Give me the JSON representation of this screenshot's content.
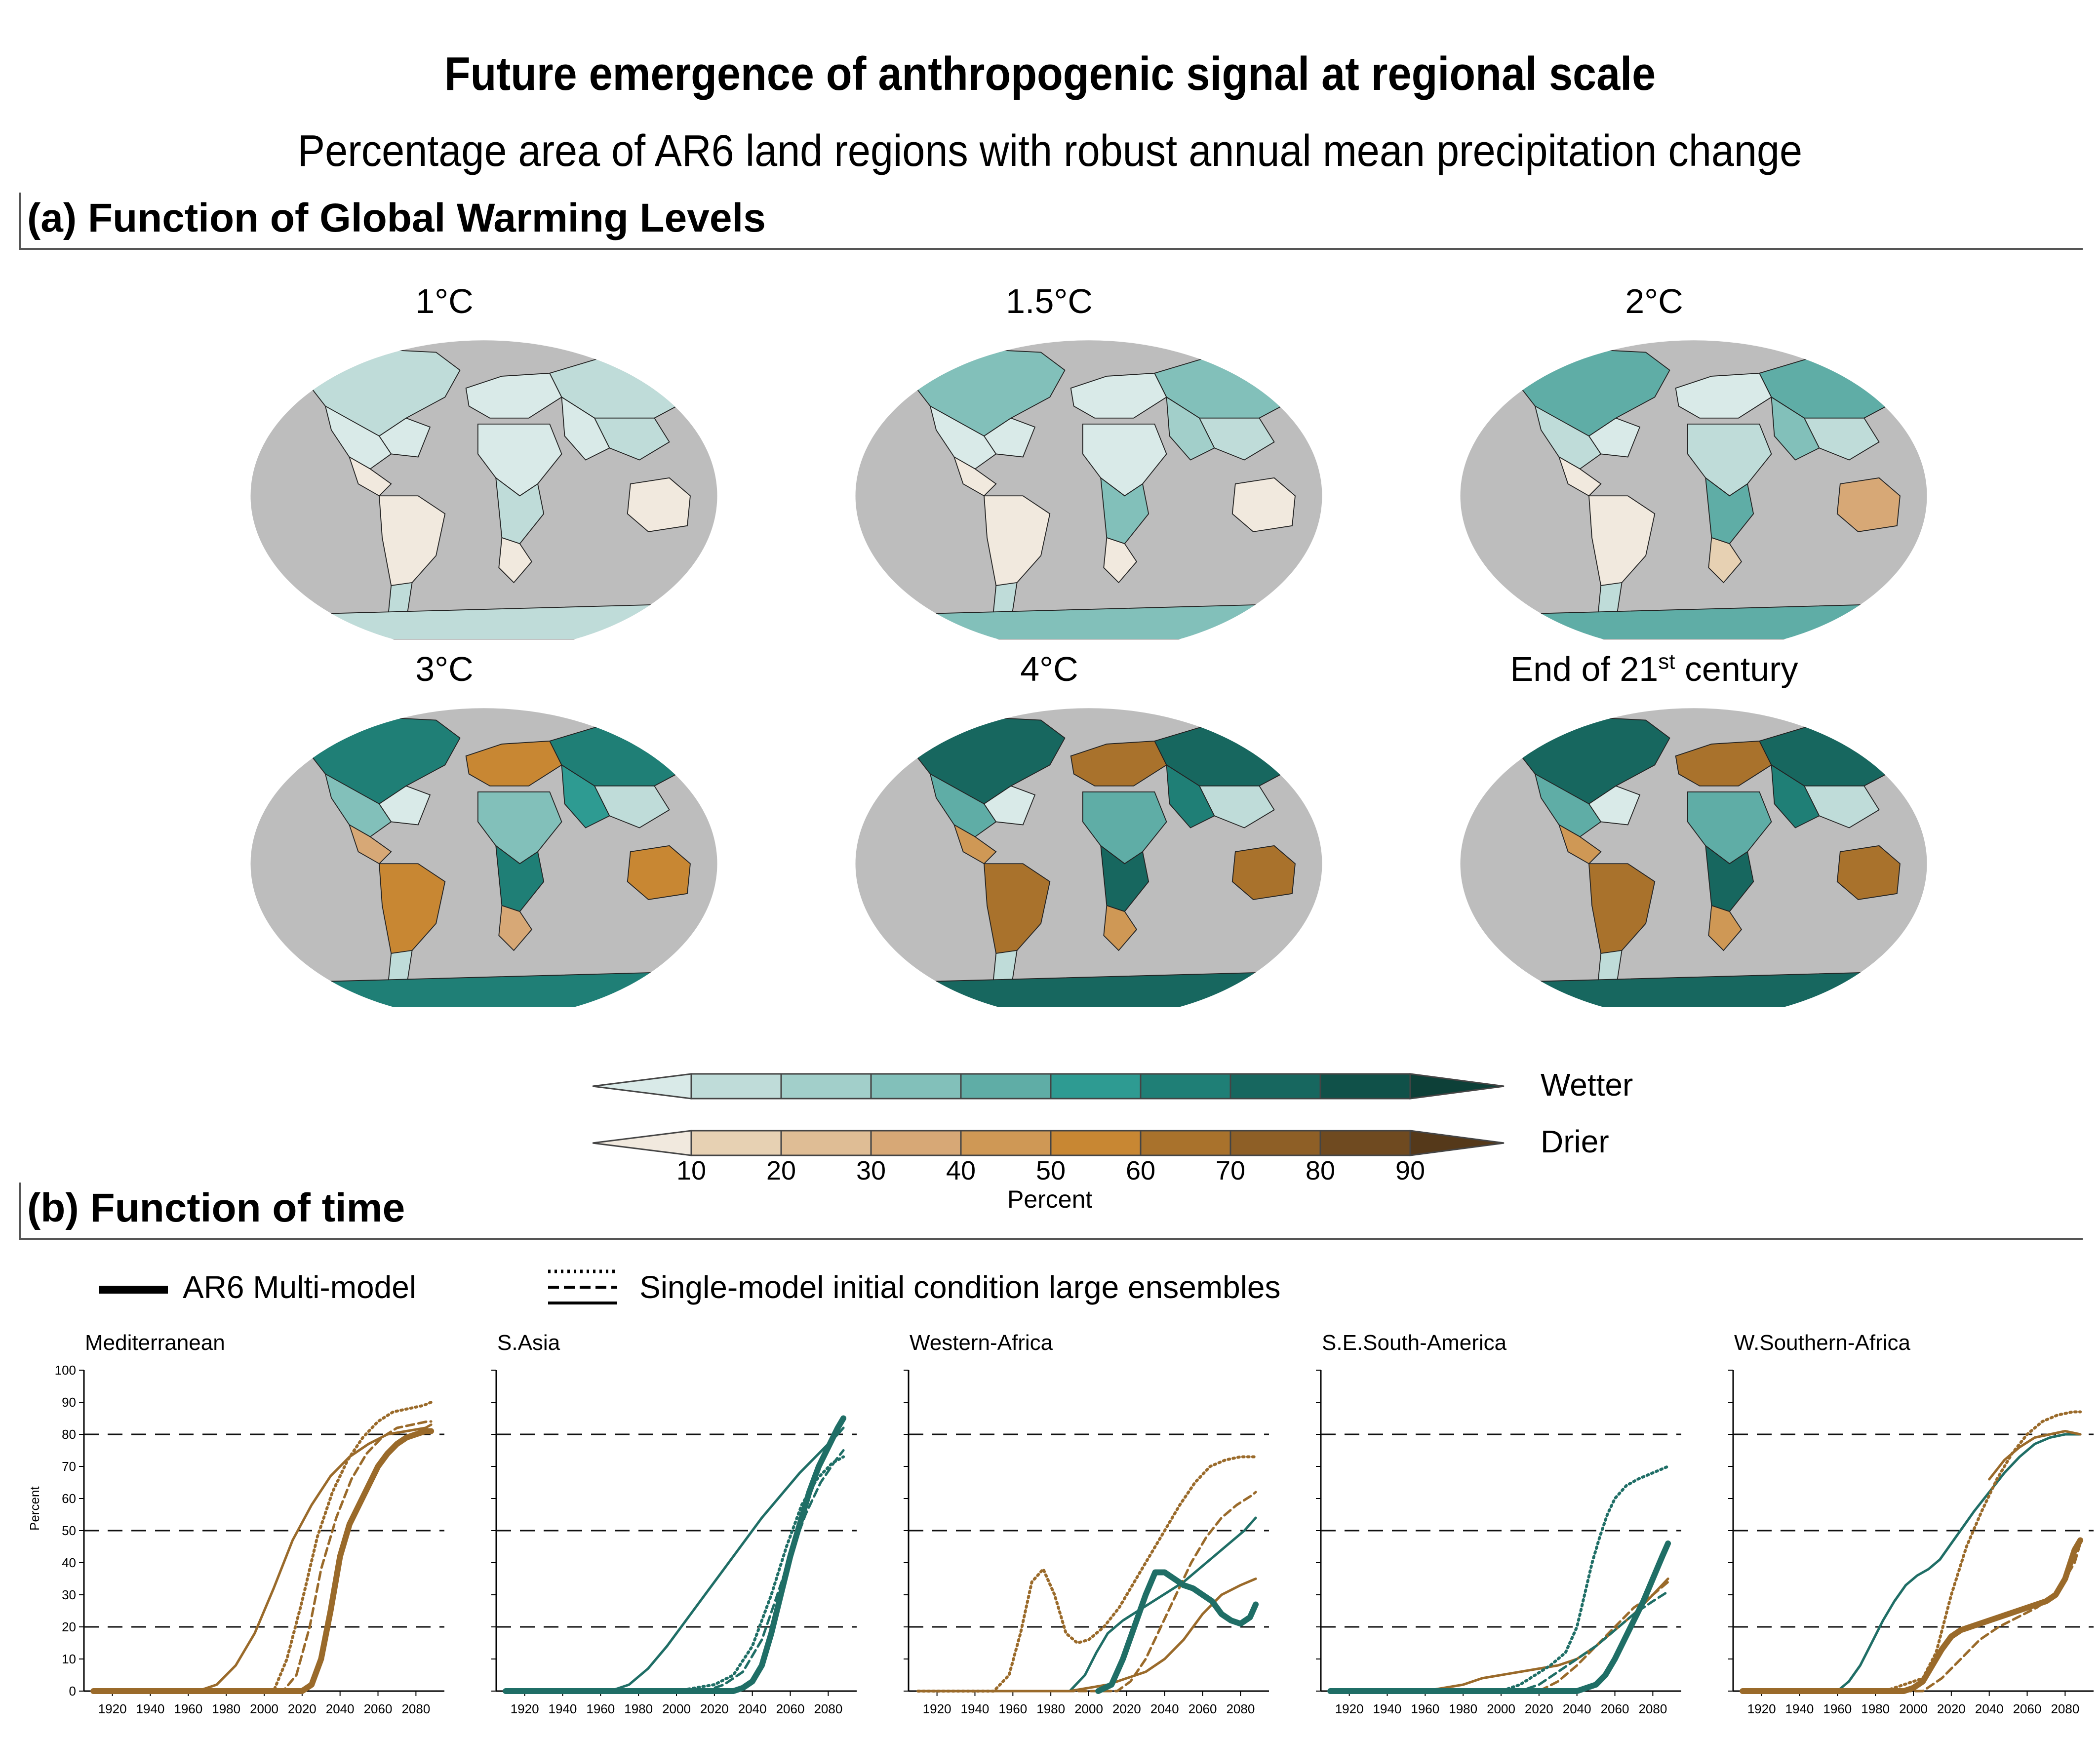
{
  "title": "Future emergence of anthropogenic signal at regional scale",
  "subtitle": "Percentage area of AR6 land regions with robust annual mean precipitation change",
  "section_a": "(a) Function of Global Warming Levels",
  "section_b": "(b) Function of time",
  "maps": [
    {
      "label": "1°C",
      "wet_shade": 1,
      "dry_shade": 1
    },
    {
      "label": "1.5°C",
      "wet_shade": 3,
      "dry_shade": 1
    },
    {
      "label": "2°C",
      "wet_shade": 4,
      "dry_shade": 2
    },
    {
      "label": "3°C",
      "wet_shade": 6,
      "dry_shade": 4
    },
    {
      "label": "4°C",
      "wet_shade": 7,
      "dry_shade": 5
    },
    {
      "label": "End of 21",
      "sup": "st",
      "label_end": " century",
      "wet_shade": 7,
      "dry_shade": 5
    }
  ],
  "colorbar": {
    "wet_label": "Wetter",
    "dry_label": "Drier",
    "unit_label": "Percent",
    "ticks": [
      "10",
      "20",
      "30",
      "40",
      "50",
      "60",
      "70",
      "80",
      "90"
    ],
    "wet_colors": [
      "#d9eae8",
      "#bfdcd9",
      "#a2cfca",
      "#82c0ba",
      "#5fada6",
      "#2e9b92",
      "#1f7f76",
      "#17675f",
      "#105149",
      "#0d4038"
    ],
    "dry_colors": [
      "#f1e9de",
      "#e7d1b3",
      "#dfbd95",
      "#d7a876",
      "#cf9855",
      "#c88733",
      "#a9722c",
      "#8e5f26",
      "#6f4a20",
      "#55391a"
    ]
  },
  "legend": {
    "solid_label": "AR6 Multi-model",
    "dashed_label": "Single-model initial condition large ensembles"
  },
  "y_axis_label": "Percent",
  "chart_data": [
    {
      "type": "line",
      "title": "Mediterranean",
      "color": "#9a6a2a",
      "xlim": [
        1905,
        2095
      ],
      "ylim": [
        0,
        100
      ],
      "x_ticks": [
        1920,
        1940,
        1960,
        1980,
        2000,
        2020,
        2040,
        2060,
        2080
      ],
      "y_ticks": [
        0,
        10,
        20,
        30,
        40,
        50,
        60,
        70,
        80,
        90,
        100
      ],
      "reference_lines": [
        20,
        50,
        80
      ],
      "series": [
        {
          "style": "solid-thick",
          "x": [
            1910,
            2020,
            2025,
            2030,
            2035,
            2040,
            2045,
            2050,
            2055,
            2060,
            2065,
            2070,
            2075,
            2080,
            2085,
            2088
          ],
          "y": [
            0,
            0,
            2,
            10,
            25,
            42,
            52,
            58,
            64,
            70,
            74,
            77,
            79,
            80,
            81,
            81
          ]
        },
        {
          "style": "solid",
          "x": [
            1910,
            1965,
            1975,
            1985,
            1995,
            2005,
            2015,
            2025,
            2035,
            2045,
            2055,
            2065,
            2075,
            2085,
            2088
          ],
          "y": [
            0,
            0,
            2,
            8,
            18,
            32,
            47,
            58,
            67,
            73,
            77,
            80,
            81,
            82,
            83
          ]
        },
        {
          "style": "dotted",
          "x": [
            1910,
            2005,
            2012,
            2020,
            2028,
            2036,
            2044,
            2052,
            2060,
            2068,
            2076,
            2084,
            2088
          ],
          "y": [
            0,
            0,
            10,
            28,
            48,
            62,
            72,
            79,
            84,
            87,
            88,
            89,
            90
          ]
        },
        {
          "style": "dashed",
          "x": [
            1910,
            2010,
            2017,
            2024,
            2030,
            2038,
            2046,
            2054,
            2062,
            2070,
            2078,
            2086,
            2088
          ],
          "y": [
            0,
            0,
            5,
            20,
            38,
            54,
            66,
            74,
            79,
            82,
            83,
            84,
            84
          ]
        }
      ]
    },
    {
      "type": "line",
      "title": "S.Asia",
      "color": "#1f6e66",
      "xlim": [
        1905,
        2095
      ],
      "ylim": [
        0,
        100
      ],
      "x_ticks": [
        1920,
        1940,
        1960,
        1980,
        2000,
        2020,
        2040,
        2060,
        2080
      ],
      "y_ticks": [
        0,
        10,
        20,
        30,
        40,
        50,
        60,
        70,
        80,
        90,
        100
      ],
      "reference_lines": [
        20,
        50,
        80
      ],
      "series": [
        {
          "style": "solid-thick",
          "x": [
            1910,
            2030,
            2035,
            2040,
            2045,
            2050,
            2055,
            2060,
            2065,
            2070,
            2075,
            2080,
            2085,
            2088
          ],
          "y": [
            0,
            0,
            1,
            3,
            8,
            18,
            30,
            42,
            52,
            62,
            70,
            76,
            82,
            85
          ]
        },
        {
          "style": "solid",
          "x": [
            1910,
            1965,
            1975,
            1985,
            1995,
            2005,
            2015,
            2025,
            2035,
            2045,
            2055,
            2065,
            2075,
            2085,
            2088
          ],
          "y": [
            0,
            0,
            2,
            7,
            14,
            22,
            30,
            38,
            46,
            54,
            61,
            68,
            74,
            80,
            82
          ]
        },
        {
          "style": "dotted",
          "x": [
            1910,
            2000,
            2010,
            2020,
            2030,
            2040,
            2050,
            2058,
            2066,
            2074,
            2082,
            2088
          ],
          "y": [
            0,
            0,
            1,
            2,
            5,
            14,
            30,
            45,
            58,
            66,
            71,
            73
          ]
        },
        {
          "style": "dashed",
          "x": [
            1910,
            2015,
            2025,
            2035,
            2045,
            2052,
            2060,
            2068,
            2076,
            2084,
            2088
          ],
          "y": [
            0,
            0,
            2,
            6,
            16,
            28,
            42,
            55,
            65,
            72,
            75
          ]
        }
      ]
    },
    {
      "type": "line",
      "title": "Western-Africa",
      "xlim": [
        1905,
        2095
      ],
      "ylim": [
        0,
        100
      ],
      "x_ticks": [
        1920,
        1940,
        1960,
        1980,
        2000,
        2020,
        2040,
        2060,
        2080
      ],
      "y_ticks": [
        0,
        10,
        20,
        30,
        40,
        50,
        60,
        70,
        80,
        90,
        100
      ],
      "reference_lines": [
        20,
        50,
        80
      ],
      "series": [
        {
          "style": "solid-thick",
          "color": "#1f6e66",
          "x": [
            2005,
            2012,
            2018,
            2024,
            2030,
            2035,
            2040,
            2045,
            2050,
            2055,
            2060,
            2065,
            2070,
            2075,
            2080,
            2085,
            2088
          ],
          "y": [
            0,
            2,
            10,
            20,
            30,
            37,
            37,
            35,
            33,
            32,
            30,
            28,
            24,
            22,
            21,
            23,
            27
          ]
        },
        {
          "style": "solid",
          "color": "#1f6e66",
          "x": [
            1990,
            1998,
            2004,
            2010,
            2018,
            2026,
            2034,
            2042,
            2050,
            2058,
            2066,
            2074,
            2082,
            2088
          ],
          "y": [
            0,
            5,
            12,
            18,
            22,
            25,
            28,
            31,
            34,
            38,
            42,
            46,
            50,
            54
          ]
        },
        {
          "style": "solid",
          "color": "#9a6a2a",
          "x": [
            1910,
            1990,
            2000,
            2010,
            2020,
            2030,
            2040,
            2050,
            2060,
            2070,
            2080,
            2088
          ],
          "y": [
            0,
            0,
            1,
            2,
            4,
            6,
            10,
            16,
            24,
            30,
            33,
            35
          ]
        },
        {
          "style": "dotted",
          "color": "#9a6a2a",
          "x": [
            1910,
            1950,
            1958,
            1964,
            1970,
            1976,
            1982,
            1988,
            1994,
            2000,
            2008,
            2016,
            2024,
            2032,
            2040,
            2048,
            2056,
            2064,
            2072,
            2080,
            2088
          ],
          "y": [
            0,
            0,
            5,
            18,
            34,
            38,
            30,
            18,
            15,
            16,
            20,
            26,
            34,
            42,
            50,
            58,
            65,
            70,
            72,
            73,
            73
          ]
        },
        {
          "style": "dashed",
          "color": "#9a6a2a",
          "x": [
            1910,
            2015,
            2022,
            2030,
            2038,
            2046,
            2054,
            2062,
            2070,
            2078,
            2086,
            2088
          ],
          "y": [
            0,
            0,
            3,
            10,
            20,
            30,
            40,
            48,
            54,
            58,
            61,
            62
          ]
        }
      ]
    },
    {
      "type": "line",
      "title": "S.E.South-America",
      "xlim": [
        1905,
        2095
      ],
      "ylim": [
        0,
        100
      ],
      "x_ticks": [
        1920,
        1940,
        1960,
        1980,
        2000,
        2020,
        2040,
        2060,
        2080
      ],
      "y_ticks": [
        0,
        10,
        20,
        30,
        40,
        50,
        60,
        70,
        80,
        90,
        100
      ],
      "reference_lines": [
        20,
        50,
        80
      ],
      "series": [
        {
          "style": "solid-thick",
          "color": "#1f6e66",
          "x": [
            1910,
            2040,
            2045,
            2050,
            2055,
            2060,
            2065,
            2070,
            2075,
            2080,
            2085,
            2088
          ],
          "y": [
            0,
            0,
            1,
            2,
            5,
            10,
            16,
            22,
            28,
            35,
            42,
            46
          ]
        },
        {
          "style": "solid",
          "color": "#9a6a2a",
          "x": [
            1910,
            1960,
            1970,
            1980,
            1990,
            2000,
            2010,
            2020,
            2030,
            2040,
            2050,
            2060,
            2070,
            2080,
            2088
          ],
          "y": [
            0,
            0,
            1,
            2,
            4,
            5,
            6,
            7,
            8,
            10,
            14,
            19,
            24,
            30,
            35
          ]
        },
        {
          "style": "dotted",
          "color": "#1f6e66",
          "x": [
            1910,
            2000,
            2010,
            2018,
            2026,
            2034,
            2040,
            2044,
            2048,
            2052,
            2056,
            2060,
            2066,
            2072,
            2080,
            2088
          ],
          "y": [
            0,
            0,
            2,
            5,
            8,
            12,
            20,
            30,
            40,
            48,
            55,
            60,
            64,
            66,
            68,
            70
          ]
        },
        {
          "style": "dashed",
          "color": "#9a6a2a",
          "x": [
            1910,
            2020,
            2030,
            2040,
            2050,
            2060,
            2070,
            2080,
            2088
          ],
          "y": [
            0,
            0,
            3,
            8,
            14,
            20,
            26,
            30,
            34
          ]
        },
        {
          "style": "dashed",
          "color": "#1f6e66",
          "x": [
            1910,
            2010,
            2020,
            2030,
            2040,
            2050,
            2060,
            2070,
            2080,
            2088
          ],
          "y": [
            0,
            0,
            2,
            6,
            10,
            14,
            19,
            24,
            28,
            31
          ]
        }
      ]
    },
    {
      "type": "line",
      "title": "W.Southern-Africa",
      "xlim": [
        1905,
        2095
      ],
      "ylim": [
        0,
        100
      ],
      "x_ticks": [
        1920,
        1940,
        1960,
        1980,
        2000,
        2020,
        2040,
        2060,
        2080
      ],
      "y_ticks": [
        0,
        10,
        20,
        30,
        40,
        50,
        60,
        70,
        80,
        90,
        100
      ],
      "reference_lines": [
        20,
        50,
        80
      ],
      "series": [
        {
          "style": "solid-thick",
          "color": "#9a6a2a",
          "x": [
            1910,
            1995,
            2000,
            2005,
            2010,
            2015,
            2020,
            2025,
            2030,
            2035,
            2040,
            2045,
            2050,
            2055,
            2060,
            2065,
            2070,
            2075,
            2080,
            2085,
            2088
          ],
          "y": [
            0,
            0,
            1,
            3,
            8,
            13,
            17,
            19,
            20,
            21,
            22,
            23,
            24,
            25,
            26,
            27,
            28,
            30,
            35,
            44,
            47
          ]
        },
        {
          "style": "solid",
          "color": "#1f6e66",
          "x": [
            1910,
            1960,
            1966,
            1972,
            1978,
            1984,
            1990,
            1996,
            2002,
            2008,
            2014,
            2020,
            2026,
            2032,
            2040,
            2048,
            2056,
            2064,
            2072,
            2080,
            2088
          ],
          "y": [
            0,
            0,
            3,
            8,
            15,
            22,
            28,
            33,
            36,
            38,
            41,
            46,
            51,
            56,
            62,
            68,
            73,
            77,
            79,
            80,
            80
          ]
        },
        {
          "style": "solid",
          "color": "#9a6a2a",
          "x": [
            2040,
            2048,
            2056,
            2064,
            2072,
            2080,
            2088
          ],
          "y": [
            66,
            72,
            76,
            79,
            80,
            81,
            80
          ]
        },
        {
          "style": "dotted",
          "color": "#9a6a2a",
          "x": [
            1910,
            1985,
            1995,
            2005,
            2012,
            2020,
            2028,
            2036,
            2044,
            2052,
            2060,
            2068,
            2076,
            2084,
            2088
          ],
          "y": [
            0,
            0,
            2,
            4,
            12,
            30,
            45,
            56,
            66,
            74,
            80,
            84,
            86,
            87,
            87
          ]
        },
        {
          "style": "dashed",
          "color": "#9a6a2a",
          "x": [
            1910,
            2005,
            2015,
            2025,
            2035,
            2045,
            2055,
            2065,
            2075,
            2085,
            2088
          ],
          "y": [
            0,
            0,
            4,
            10,
            16,
            20,
            23,
            26,
            30,
            40,
            46
          ]
        }
      ]
    }
  ]
}
